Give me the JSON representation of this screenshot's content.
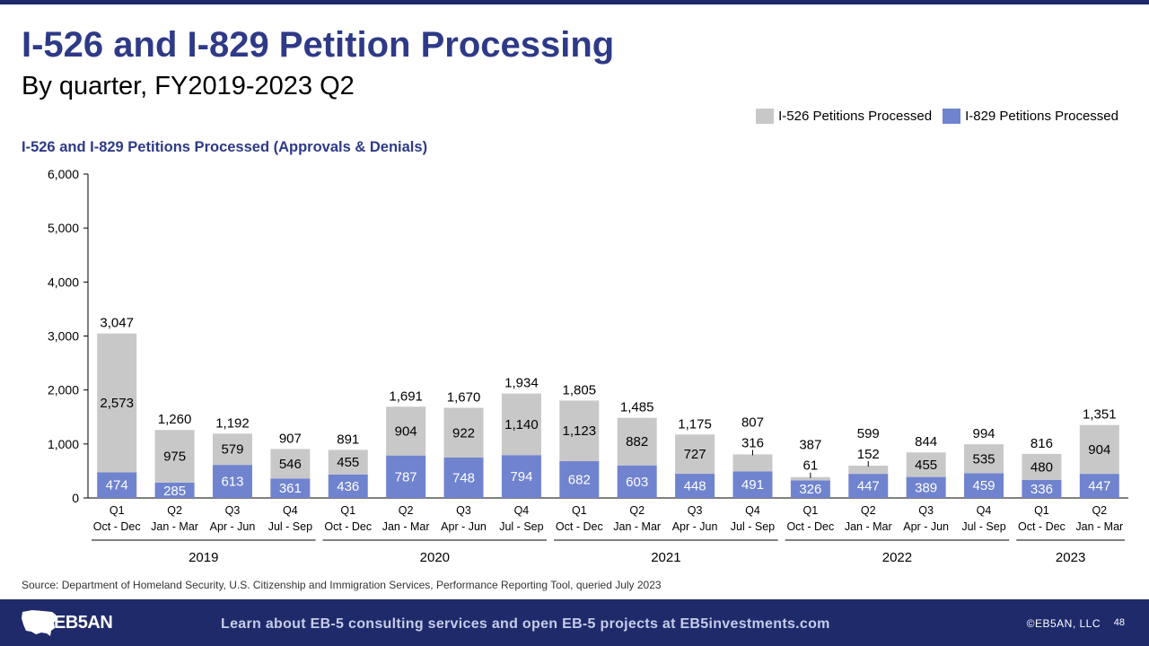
{
  "header": {
    "title": "I-526 and I-829 Petition Processing",
    "subtitle": "By quarter, FY2019-2023 Q2"
  },
  "legend": {
    "i526": "I-526 Petitions Processed",
    "i829": "I-829 Petitions Processed"
  },
  "colors": {
    "i526": "#c8c8c8",
    "i829": "#7083cf",
    "title": "#2e3a87",
    "footer": "#1f2a6b"
  },
  "chart_data": {
    "type": "bar",
    "stacked": true,
    "title": "I-526 and I-829 Petitions Processed (Approvals & Denials)",
    "ylim": [
      0,
      6000
    ],
    "yticks": [
      "0",
      "1,000",
      "2,000",
      "3,000",
      "4,000",
      "5,000",
      "6,000"
    ],
    "yticks_values": [
      0,
      1000,
      2000,
      3000,
      4000,
      5000,
      6000
    ],
    "categories": [
      {
        "quarter": "Q1",
        "months": "Oct - Dec"
      },
      {
        "quarter": "Q2",
        "months": "Jan - Mar"
      },
      {
        "quarter": "Q3",
        "months": "Apr - Jun"
      },
      {
        "quarter": "Q4",
        "months": "Jul - Sep"
      },
      {
        "quarter": "Q1",
        "months": "Oct - Dec"
      },
      {
        "quarter": "Q2",
        "months": "Jan - Mar"
      },
      {
        "quarter": "Q3",
        "months": "Apr - Jun"
      },
      {
        "quarter": "Q4",
        "months": "Jul - Sep"
      },
      {
        "quarter": "Q1",
        "months": "Oct - Dec"
      },
      {
        "quarter": "Q2",
        "months": "Jan - Mar"
      },
      {
        "quarter": "Q3",
        "months": "Apr - Jun"
      },
      {
        "quarter": "Q4",
        "months": "Jul - Sep"
      },
      {
        "quarter": "Q1",
        "months": "Oct - Dec"
      },
      {
        "quarter": "Q2",
        "months": "Jan - Mar"
      },
      {
        "quarter": "Q3",
        "months": "Apr - Jun"
      },
      {
        "quarter": "Q4",
        "months": "Jul - Sep"
      },
      {
        "quarter": "Q1",
        "months": "Oct - Dec"
      },
      {
        "quarter": "Q2",
        "months": "Jan - Mar"
      }
    ],
    "years": [
      {
        "label": "2019",
        "count": 4
      },
      {
        "label": "2020",
        "count": 4
      },
      {
        "label": "2021",
        "count": 4
      },
      {
        "label": "2022",
        "count": 4
      },
      {
        "label": "2023",
        "count": 2
      }
    ],
    "series": [
      {
        "name": "I-829 Petitions Processed",
        "values": [
          474,
          285,
          613,
          361,
          436,
          787,
          748,
          794,
          682,
          603,
          448,
          491,
          326,
          447,
          389,
          459,
          336,
          447
        ],
        "labels": [
          "474",
          "285",
          "613",
          "361",
          "436",
          "787",
          "748",
          "794",
          "682",
          "603",
          "448",
          "491",
          "326",
          "447",
          "389",
          "459",
          "336",
          "447"
        ]
      },
      {
        "name": "I-526 Petitions Processed",
        "values": [
          2573,
          975,
          579,
          546,
          455,
          904,
          922,
          1140,
          1123,
          882,
          727,
          316,
          61,
          152,
          455,
          535,
          480,
          904
        ],
        "labels": [
          "2,573",
          "975",
          "579",
          "546",
          "455",
          "904",
          "922",
          "1,140",
          "1,123",
          "882",
          "727",
          "316",
          "61",
          "152",
          "455",
          "535",
          "480",
          "904"
        ]
      }
    ],
    "totals": [
      3047,
      1260,
      1192,
      907,
      891,
      1691,
      1670,
      1934,
      1805,
      1485,
      1175,
      807,
      387,
      599,
      844,
      994,
      816,
      1351
    ],
    "total_labels": [
      "3,047",
      "1,260",
      "1,192",
      "907",
      "891",
      "1,691",
      "1,670",
      "1,934",
      "1,805",
      "1,485",
      "1,175",
      "807",
      "387",
      "599",
      "844",
      "994",
      "816",
      "1,351"
    ]
  },
  "source": "Source: Department of Homeland Security, U.S. Citizenship and Immigration Services, Performance Reporting Tool, queried July 2023",
  "footer": {
    "logo_text": "EB5AN",
    "promo": "Learn about EB-5 consulting services and open EB-5 projects at EB5investments.com",
    "copyright": "©EB5AN, LLC",
    "page_number": "48"
  }
}
